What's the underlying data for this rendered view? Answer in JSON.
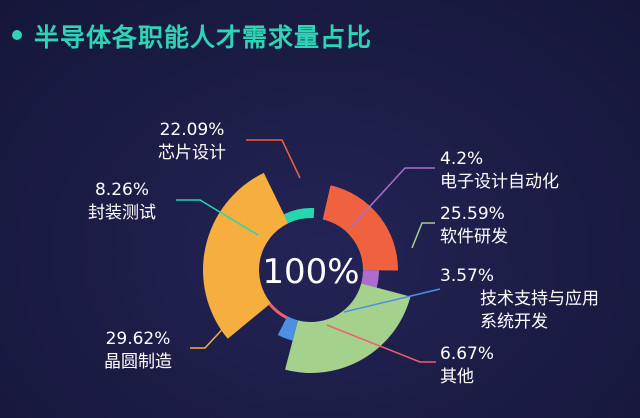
{
  "title": "半导体各职能人才需求量占比",
  "center_text": "100%",
  "colors": {
    "background": "#1b1c44",
    "title": "#2fd3b5",
    "text": "#ffffff"
  },
  "chart_data": {
    "type": "pie",
    "title": "半导体各职能人才需求量占比",
    "center_label": "100%",
    "slices": [
      {
        "label": "芯片设计",
        "value": 22.09,
        "value_label": "22.09%",
        "color": "#f0623f"
      },
      {
        "label": "电子设计自动化",
        "value": 4.2,
        "value_label": "4.2%",
        "color": "#b06bd0"
      },
      {
        "label": "软件研发",
        "value": 25.59,
        "value_label": "25.59%",
        "color": "#a4d18c"
      },
      {
        "label": "技术支持与应用系统开发",
        "label_lines": [
          "技术支持与应用",
          "系统开发"
        ],
        "value": 3.57,
        "value_label": "3.57%",
        "color": "#4c8fe3"
      },
      {
        "label": "其他",
        "value": 6.67,
        "value_label": "6.67%",
        "color": "#f15f6d"
      },
      {
        "label": "晶圆制造",
        "value": 29.62,
        "value_label": "29.62%",
        "color": "#f6ae3f"
      },
      {
        "label": "封装测试",
        "value": 8.26,
        "value_label": "8.26%",
        "color": "#27d6ae"
      }
    ]
  }
}
